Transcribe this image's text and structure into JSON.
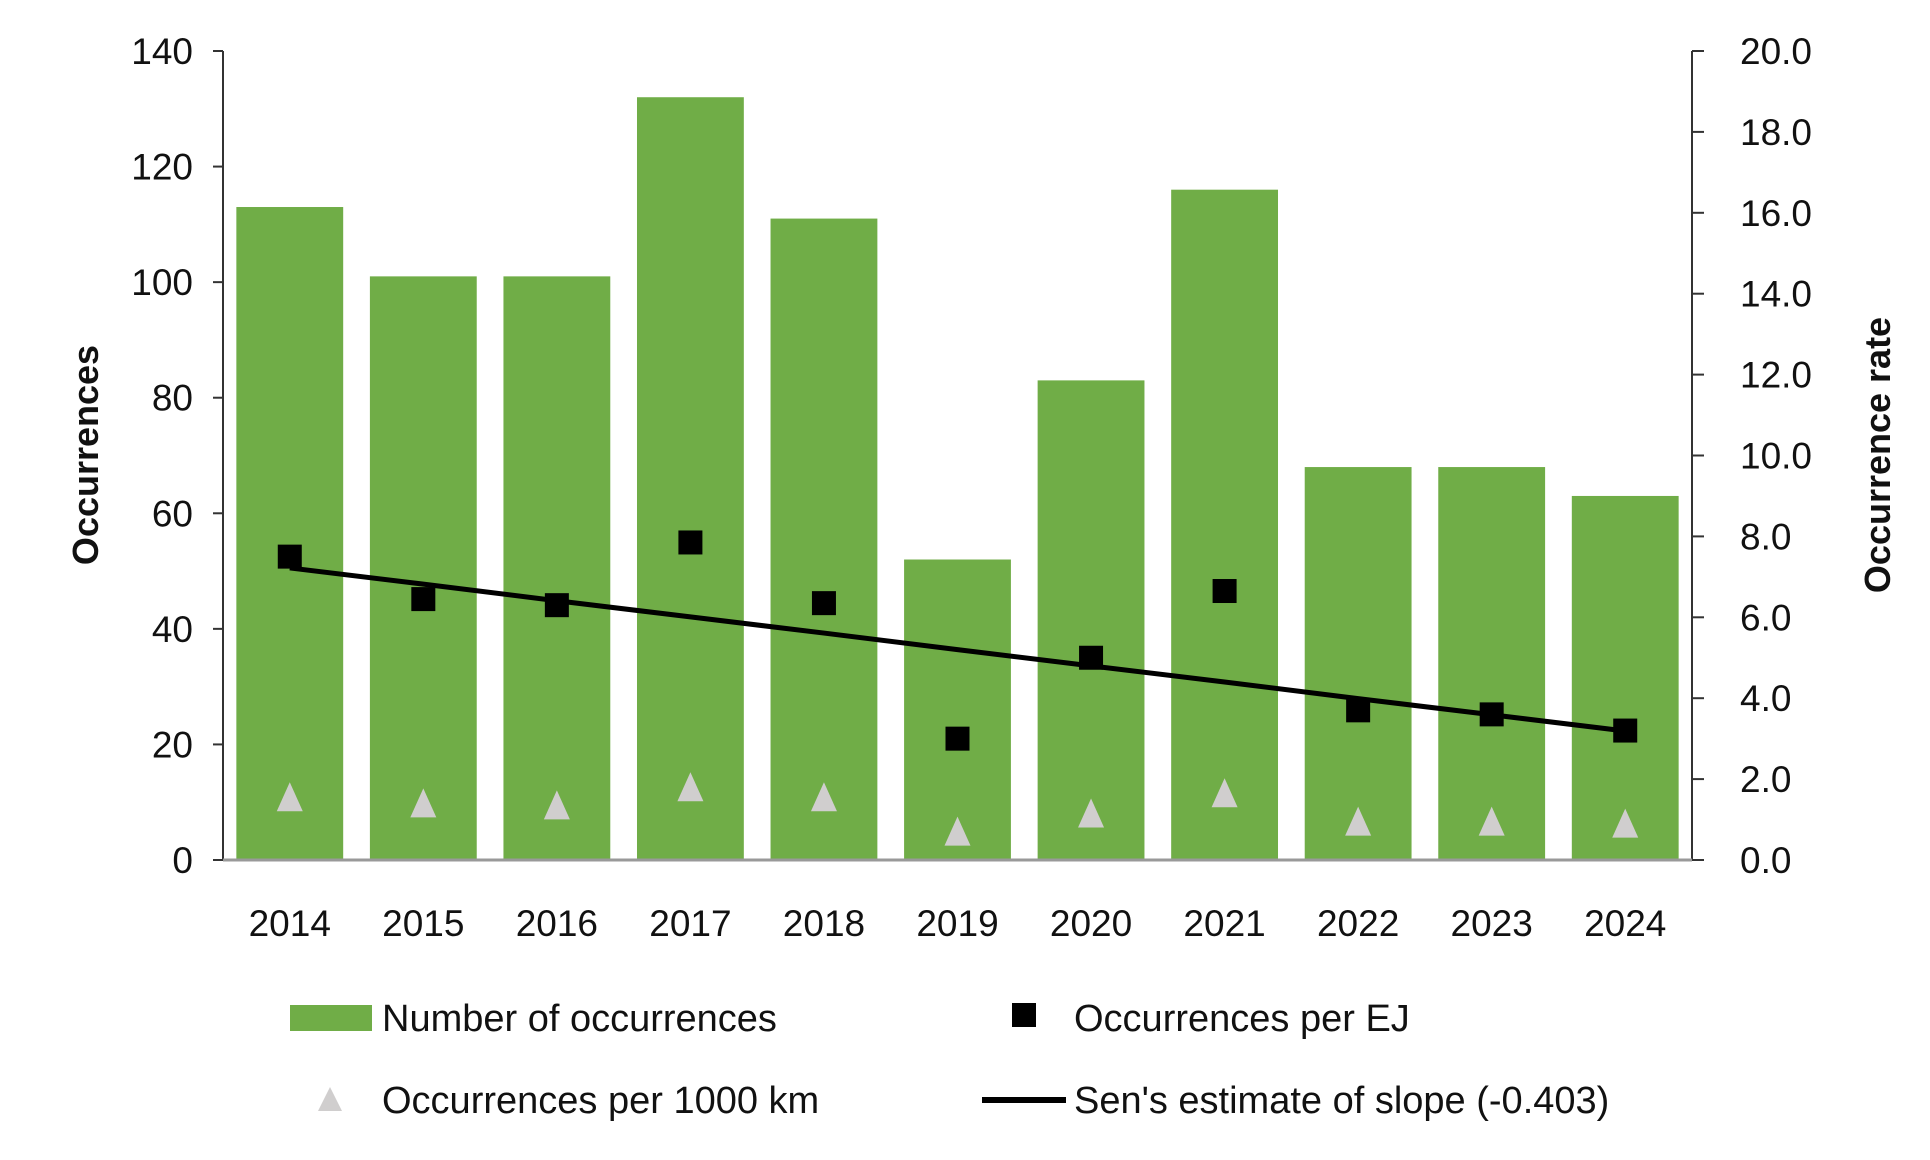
{
  "chart_data": {
    "type": "bar",
    "categories": [
      "2014",
      "2015",
      "2016",
      "2017",
      "2018",
      "2019",
      "2020",
      "2021",
      "2022",
      "2023",
      "2024"
    ],
    "series": [
      {
        "name": "Number of occurrences",
        "type": "bar",
        "axis": "left",
        "color": "#70ad47",
        "values": [
          113,
          101,
          101,
          132,
          111,
          52,
          83,
          116,
          68,
          68,
          63
        ]
      },
      {
        "name": "Occurrences per EJ",
        "type": "scatter",
        "marker": "square",
        "axis": "right",
        "color": "#000000",
        "values": [
          7.5,
          6.45,
          6.3,
          7.85,
          6.35,
          3.0,
          5.0,
          6.65,
          3.7,
          3.6,
          3.2
        ]
      },
      {
        "name": "Occurrences per 1000 km",
        "type": "scatter",
        "marker": "triangle",
        "axis": "right",
        "color": "#d0cece",
        "values": [
          1.55,
          1.4,
          1.35,
          1.8,
          1.55,
          0.7,
          1.15,
          1.65,
          0.95,
          0.95,
          0.9
        ]
      },
      {
        "name": "Sen's estimate of slope (-0.403)",
        "type": "line",
        "axis": "right",
        "color": "#000000",
        "values": [
          7.22,
          6.82,
          6.41,
          6.01,
          5.61,
          5.2,
          4.8,
          4.4,
          3.99,
          3.59,
          3.19
        ]
      }
    ],
    "ylabel": "Occurrences",
    "ylim": [
      0,
      140
    ],
    "yticks": [
      "0",
      "20",
      "40",
      "60",
      "80",
      "100",
      "120",
      "140"
    ],
    "y2label": "Occurrence rate",
    "y2lim": [
      0,
      20
    ],
    "y2ticks": [
      "0.0",
      "2.0",
      "4.0",
      "6.0",
      "8.0",
      "10.0",
      "12.0",
      "14.0",
      "16.0",
      "18.0",
      "20.0"
    ],
    "grid": false,
    "legend_placement": "bottom"
  }
}
